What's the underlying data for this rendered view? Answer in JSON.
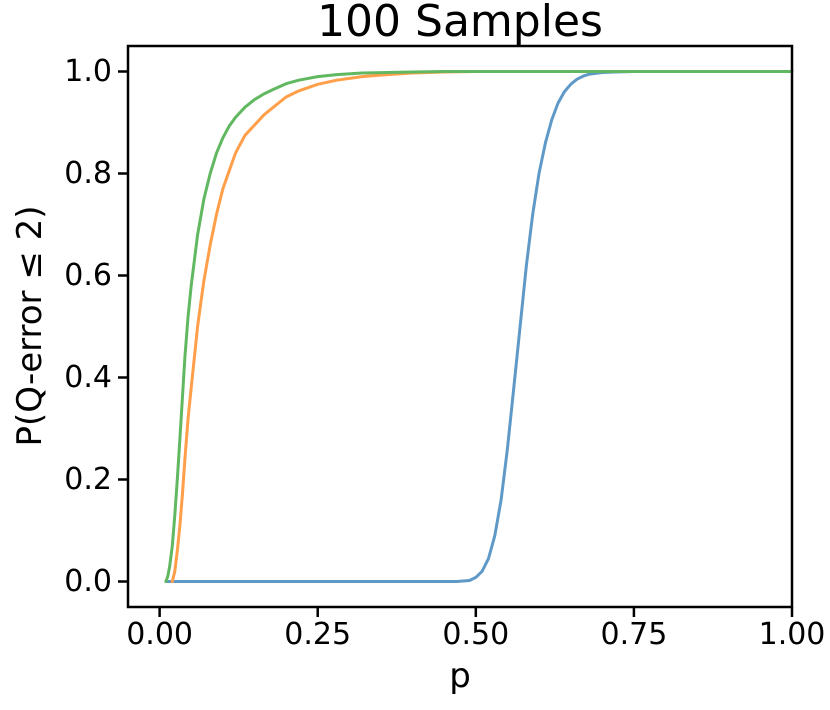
{
  "figure": {
    "background": "#ffffff",
    "axis_color": "#000000"
  },
  "chart_data": {
    "type": "line",
    "title": "100 Samples",
    "xlabel": "p",
    "ylabel": "P(Q-error ≤ 2)",
    "grid": false,
    "legend": "none",
    "xlim": [
      -0.05,
      1.0
    ],
    "ylim": [
      -0.05,
      1.05
    ],
    "xticks": [
      0,
      0.25,
      0.5,
      0.75,
      1.0
    ],
    "xticklabels": [
      "0.00",
      "0.25",
      "0.50",
      "0.75",
      "1.00"
    ],
    "yticks": [
      0,
      0.2,
      0.4,
      0.6,
      0.8,
      1.0
    ],
    "yticklabels": [
      "0.0",
      "0.2",
      "0.4",
      "0.6",
      "0.8",
      "1.0"
    ],
    "series": [
      {
        "name": "series-blue",
        "color": "#5f99c7",
        "x": [
          0.01,
          0.1,
          0.2,
          0.3,
          0.4,
          0.45,
          0.47,
          0.49,
          0.5,
          0.51,
          0.52,
          0.53,
          0.54,
          0.55,
          0.56,
          0.57,
          0.58,
          0.59,
          0.6,
          0.61,
          0.62,
          0.63,
          0.64,
          0.65,
          0.66,
          0.67,
          0.68,
          0.7,
          0.72,
          0.75,
          0.8,
          0.9,
          1.0
        ],
        "y": [
          0.0,
          0.0,
          0.0,
          0.0,
          0.0,
          0.0,
          0.0,
          0.002,
          0.008,
          0.02,
          0.045,
          0.09,
          0.16,
          0.26,
          0.38,
          0.5,
          0.62,
          0.72,
          0.8,
          0.86,
          0.905,
          0.938,
          0.96,
          0.975,
          0.985,
          0.991,
          0.995,
          0.998,
          0.999,
          1.0,
          1.0,
          1.0,
          1.0
        ]
      },
      {
        "name": "series-orange",
        "color": "#ff9f4a",
        "x": [
          0.02,
          0.024,
          0.028,
          0.032,
          0.036,
          0.04,
          0.045,
          0.05,
          0.055,
          0.06,
          0.065,
          0.07,
          0.08,
          0.09,
          0.1,
          0.11,
          0.12,
          0.135,
          0.15,
          0.165,
          0.18,
          0.2,
          0.22,
          0.25,
          0.28,
          0.32,
          0.36,
          0.4,
          0.45,
          0.5,
          0.6,
          0.7,
          0.8,
          0.9,
          1.0
        ],
        "y": [
          0.0,
          0.02,
          0.06,
          0.11,
          0.17,
          0.24,
          0.32,
          0.38,
          0.44,
          0.5,
          0.545,
          0.59,
          0.66,
          0.72,
          0.77,
          0.805,
          0.84,
          0.875,
          0.895,
          0.915,
          0.93,
          0.95,
          0.962,
          0.975,
          0.983,
          0.99,
          0.994,
          0.997,
          0.999,
          1.0,
          1.0,
          1.0,
          1.0,
          1.0,
          1.0
        ]
      },
      {
        "name": "series-green",
        "color": "#61b861",
        "x": [
          0.01,
          0.013,
          0.016,
          0.02,
          0.024,
          0.028,
          0.032,
          0.036,
          0.04,
          0.045,
          0.05,
          0.055,
          0.06,
          0.07,
          0.08,
          0.09,
          0.1,
          0.11,
          0.12,
          0.135,
          0.15,
          0.165,
          0.18,
          0.2,
          0.22,
          0.25,
          0.28,
          0.32,
          0.36,
          0.4,
          0.45,
          0.5,
          0.6,
          0.7,
          0.8,
          0.9,
          1.0
        ],
        "y": [
          0.0,
          0.01,
          0.03,
          0.07,
          0.13,
          0.2,
          0.28,
          0.36,
          0.44,
          0.52,
          0.58,
          0.63,
          0.68,
          0.75,
          0.8,
          0.84,
          0.87,
          0.893,
          0.91,
          0.93,
          0.945,
          0.956,
          0.965,
          0.976,
          0.983,
          0.99,
          0.994,
          0.997,
          0.998,
          0.999,
          1.0,
          1.0,
          1.0,
          1.0,
          1.0,
          1.0,
          1.0
        ]
      }
    ]
  }
}
